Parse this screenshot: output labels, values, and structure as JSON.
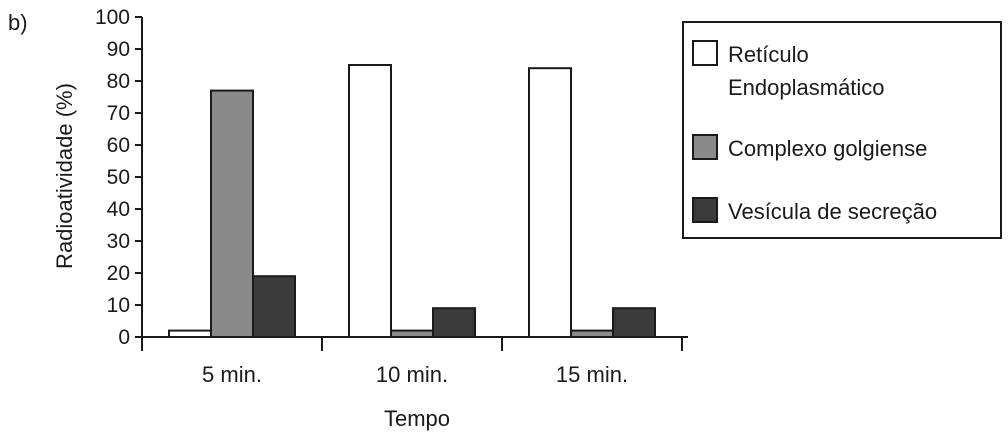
{
  "panel_label": "b)",
  "chart_data": {
    "type": "bar",
    "title": "",
    "xlabel": "Tempo",
    "ylabel": "Radioatividade (%)",
    "ylim": [
      0,
      100
    ],
    "yticks": [
      0,
      10,
      20,
      30,
      40,
      50,
      60,
      70,
      80,
      90,
      100
    ],
    "grid": false,
    "legend_position": "right",
    "categories": [
      "5 min.",
      "10 min.",
      "15 min."
    ],
    "series": [
      {
        "name": "Retículo Endoplasmático",
        "legend_lines": [
          "Retículo",
          "Endoplasmático"
        ],
        "color": "#ffffff",
        "values": [
          2,
          85,
          84
        ]
      },
      {
        "name": "Complexo golgiense",
        "legend_lines": [
          "Complexo golgiense"
        ],
        "color": "#8a8a8a",
        "values": [
          77,
          2,
          2
        ]
      },
      {
        "name": "Vesícula de secreção",
        "legend_lines": [
          "Vesícula de secreção"
        ],
        "color": "#3a3a3a",
        "values": [
          19,
          9,
          9
        ]
      }
    ]
  }
}
